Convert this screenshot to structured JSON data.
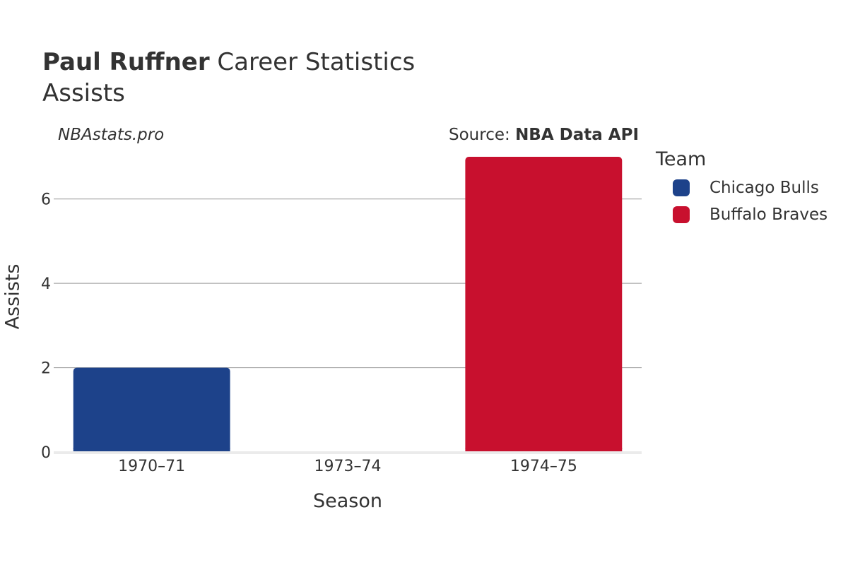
{
  "header": {
    "player_name": "Paul Ruffner",
    "title_rest": " Career Statistics",
    "subtitle": "Assists",
    "site": "NBAstats.pro",
    "source_prefix": "Source: ",
    "source_name": "NBA Data API"
  },
  "legend": {
    "title": "Team",
    "items": [
      {
        "label": "Chicago Bulls",
        "color": "#1d428a"
      },
      {
        "label": "Buffalo Braves",
        "color": "#c8102e"
      }
    ]
  },
  "chart_data": {
    "type": "bar",
    "title": "Paul Ruffner Career Statistics",
    "subtitle": "Assists",
    "xlabel": "Season",
    "ylabel": "Assists",
    "categories": [
      "1970–71",
      "1973–74",
      "1974–75"
    ],
    "series": [
      {
        "name": "Chicago Bulls",
        "color": "#1d428a",
        "values": [
          2,
          null,
          null
        ]
      },
      {
        "name": "Buffalo Braves",
        "color": "#c8102e",
        "values": [
          null,
          0,
          7
        ]
      }
    ],
    "ylim": [
      0,
      7
    ],
    "yticks": [
      0,
      2,
      4,
      6
    ],
    "grid": true,
    "legend_position": "right"
  }
}
